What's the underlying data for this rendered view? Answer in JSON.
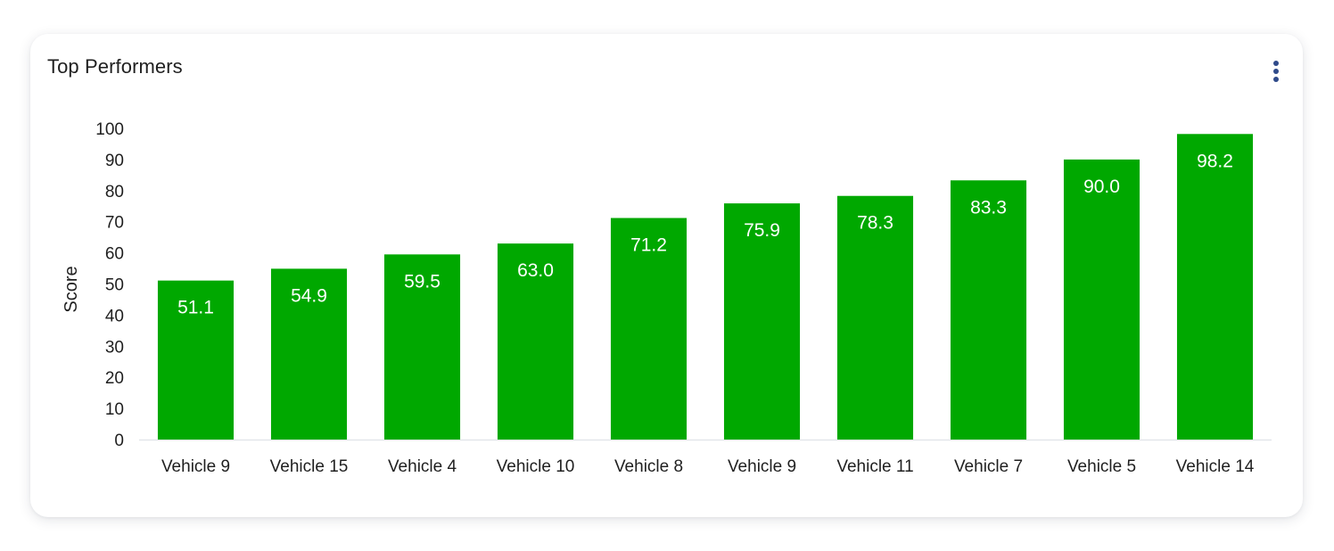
{
  "card": {
    "title": "Top Performers",
    "menu_icon": "more-vertical-icon"
  },
  "colors": {
    "bar": "#00a800",
    "bar_label": "#ffffff",
    "menu_dots": "#2f4a8a",
    "baseline": "#e3e6ea"
  },
  "chart_data": {
    "type": "bar",
    "title": "Top Performers",
    "xlabel": "",
    "ylabel": "Score",
    "ylim": [
      0,
      100
    ],
    "yticks": [
      0,
      10,
      20,
      30,
      40,
      50,
      60,
      70,
      80,
      90,
      100
    ],
    "grid": false,
    "legend": "none",
    "categories": [
      "Vehicle 9",
      "Vehicle 15",
      "Vehicle 4",
      "Vehicle 10",
      "Vehicle 8",
      "Vehicle 9",
      "Vehicle 11",
      "Vehicle 7",
      "Vehicle 5",
      "Vehicle 14"
    ],
    "values": [
      51.1,
      54.9,
      59.5,
      63.0,
      71.2,
      75.9,
      78.3,
      83.3,
      90.0,
      98.2
    ],
    "value_labels": [
      "51.1",
      "54.9",
      "59.5",
      "63.0",
      "71.2",
      "75.9",
      "78.3",
      "83.3",
      "90.0",
      "98.2"
    ]
  }
}
